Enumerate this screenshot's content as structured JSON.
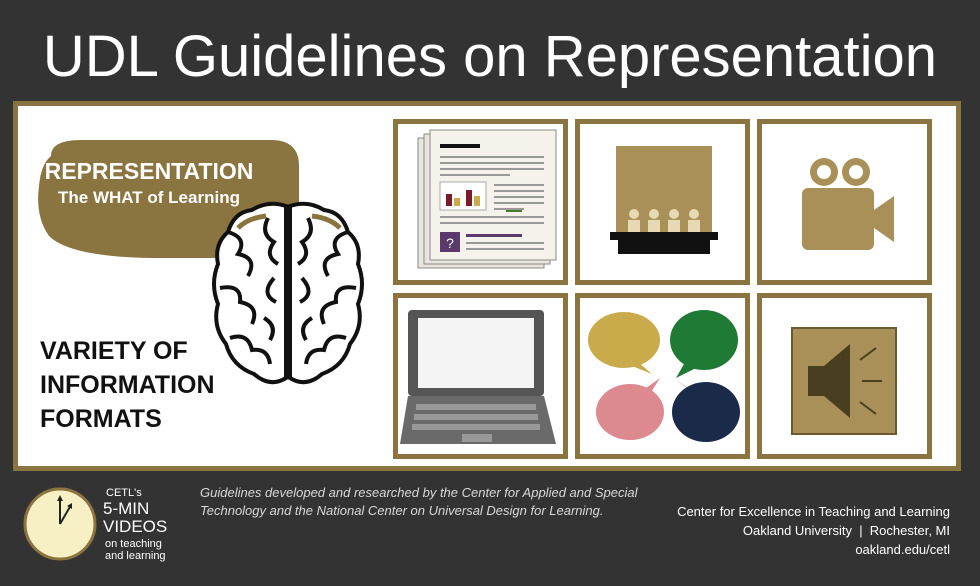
{
  "title": "UDL Guidelines on Representation",
  "representation": {
    "heading": "REPRESENTATION",
    "subheading": "The WHAT of Learning"
  },
  "variety": {
    "line1": "VARIETY OF",
    "line2": "INFORMATION",
    "line3": "FORMATS"
  },
  "tiles": {
    "document_icon": "document-icon",
    "presentation_icon": "presentation-audience-icon",
    "video_icon": "video-camera-icon",
    "laptop_icon": "laptop-icon",
    "speech_icon": "speech-bubbles-icon",
    "speaker_icon": "speaker-icon",
    "question_mark": "?"
  },
  "footer": {
    "cetl_small": "CETL's",
    "cetl_line1": "5-MIN",
    "cetl_line2": "VIDEOS",
    "cetl_line3": "on teaching",
    "cetl_line4": "and learning",
    "guidelines": "Guidelines developed and researched by the Center for Applied and Special Technology and the National Center on Universal Design for Learning.",
    "center_name": "Center for Excellence in Teaching and Learning",
    "university": "Oakland University  |  Rochester, MI",
    "url": "oakland.edu/cetl"
  },
  "colors": {
    "gold": "#8a7440",
    "background": "#333333",
    "bubble_gold": "#c9ab4c",
    "bubble_green": "#1f7a36",
    "bubble_pink": "#dc8a90",
    "bubble_navy": "#1c2a4a"
  }
}
